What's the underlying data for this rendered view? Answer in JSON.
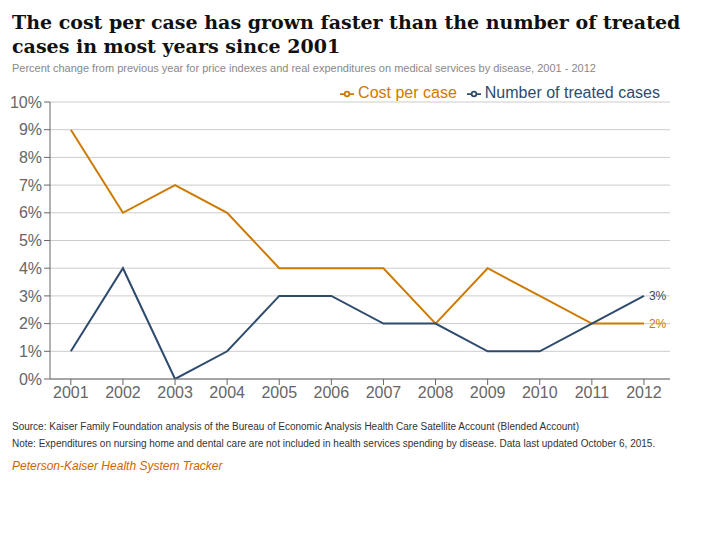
{
  "chart_data": {
    "type": "line",
    "title": "The cost per case has grown faster than the number of treated cases in most years since 2001",
    "subtitle": "Percent change from previous year for price indexes and real expenditures on medical services by disease, 2001 - 2012",
    "x": [
      2001,
      2002,
      2003,
      2004,
      2005,
      2006,
      2007,
      2008,
      2009,
      2010,
      2011,
      2012
    ],
    "series": [
      {
        "name": "Cost per case",
        "color": "#CC7A00",
        "values": [
          9,
          6,
          7,
          6,
          4,
          4,
          4,
          2,
          4,
          3,
          2,
          2
        ]
      },
      {
        "name": "Number of treated cases",
        "color": "#2E4B6E",
        "values": [
          1,
          4,
          0,
          1,
          3,
          3,
          2,
          2,
          1,
          1,
          2,
          3
        ]
      }
    ],
    "xlim": [
      2000.6,
      2012.5
    ],
    "xticks": [
      2001,
      2002,
      2003,
      2004,
      2005,
      2006,
      2007,
      2008,
      2009,
      2010,
      2011,
      2012
    ],
    "ylim": [
      0,
      10
    ],
    "yticks": [
      {
        "value": 0,
        "label": "0%"
      },
      {
        "value": 1,
        "label": "1%"
      },
      {
        "value": 2,
        "label": "2%"
      },
      {
        "value": 3,
        "label": "3%"
      },
      {
        "value": 4,
        "label": "4%"
      },
      {
        "value": 5,
        "label": "5%"
      },
      {
        "value": 6,
        "label": "6%"
      },
      {
        "value": 7,
        "label": "7%"
      },
      {
        "value": 8,
        "label": "8%"
      },
      {
        "value": 9,
        "label": "9%"
      },
      {
        "value": 10,
        "label": "10%"
      }
    ],
    "grid": true,
    "legend": "upper right",
    "annotations": [
      {
        "text": "2%",
        "x": 2012,
        "y": 2,
        "color": "#CC7A00"
      },
      {
        "text": "3%",
        "x": 2012,
        "y": 3,
        "color": "#2E4B6E"
      }
    ],
    "source": "Source: Kaiser Family Foundation analysis of the Bureau of Economic Analysis Health Care Satellite Account (Blended Account)",
    "note": "Note: Expenditures on nursing home and dental care are not included in health services spending by disease. Data last updated October 6, 2015.",
    "footer": {
      "text": "Peterson-Kaiser Health System Tracker",
      "color": "#CC6600"
    }
  }
}
